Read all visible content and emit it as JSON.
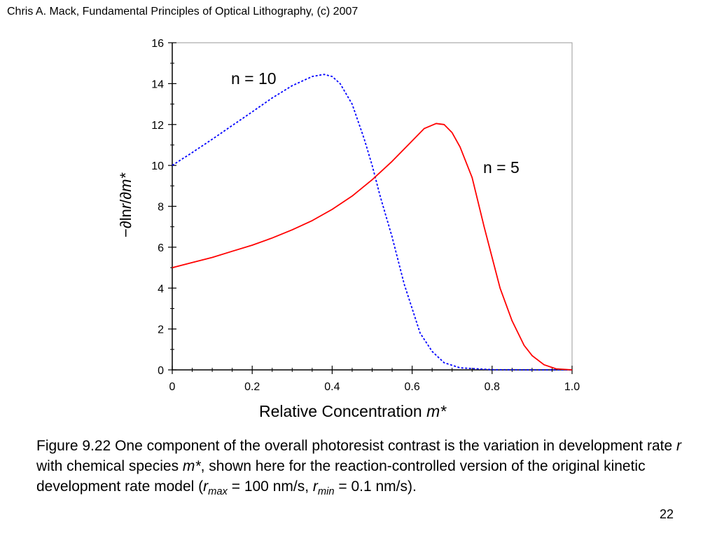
{
  "header": {
    "text": "Chris A. Mack, Fundamental Principles of Optical Lithography, (c) 2007"
  },
  "chart_data": {
    "type": "line",
    "xlim": [
      0,
      1.0
    ],
    "ylim": [
      0,
      16
    ],
    "x_ticks": [
      "0",
      "0.2",
      "0.4",
      "0.6",
      "0.8",
      "1.0"
    ],
    "y_ticks": [
      "0",
      "2",
      "4",
      "6",
      "8",
      "10",
      "12",
      "14",
      "16"
    ],
    "xlabel": {
      "text": "Relative Concentration ",
      "var": "m*"
    },
    "ylabel": {
      "prefix": "−∂ln",
      "r": "r",
      "mid": "/∂",
      "m": "m*"
    },
    "grid": false,
    "series": [
      {
        "name": "n = 10",
        "color": "#0000ff",
        "style": "dotted",
        "points": [
          [
            0,
            10.0
          ],
          [
            0.05,
            10.63
          ],
          [
            0.1,
            11.28
          ],
          [
            0.15,
            11.95
          ],
          [
            0.2,
            12.62
          ],
          [
            0.25,
            13.3
          ],
          [
            0.3,
            13.9
          ],
          [
            0.35,
            14.35
          ],
          [
            0.38,
            14.45
          ],
          [
            0.4,
            14.35
          ],
          [
            0.42,
            14.0
          ],
          [
            0.45,
            13.0
          ],
          [
            0.48,
            11.3
          ],
          [
            0.5,
            10.0
          ],
          [
            0.52,
            8.5
          ],
          [
            0.55,
            6.5
          ],
          [
            0.58,
            4.2
          ],
          [
            0.6,
            3.0
          ],
          [
            0.62,
            1.8
          ],
          [
            0.65,
            0.9
          ],
          [
            0.68,
            0.35
          ],
          [
            0.72,
            0.1
          ],
          [
            0.8,
            0.01
          ],
          [
            0.9,
            0.0
          ],
          [
            1.0,
            0.0
          ]
        ]
      },
      {
        "name": "n = 5",
        "color": "#ff0000",
        "style": "solid",
        "points": [
          [
            0,
            5.0
          ],
          [
            0.05,
            5.25
          ],
          [
            0.1,
            5.5
          ],
          [
            0.15,
            5.8
          ],
          [
            0.2,
            6.1
          ],
          [
            0.25,
            6.45
          ],
          [
            0.3,
            6.85
          ],
          [
            0.35,
            7.3
          ],
          [
            0.4,
            7.85
          ],
          [
            0.45,
            8.5
          ],
          [
            0.5,
            9.3
          ],
          [
            0.55,
            10.2
          ],
          [
            0.6,
            11.2
          ],
          [
            0.63,
            11.8
          ],
          [
            0.66,
            12.05
          ],
          [
            0.68,
            12.0
          ],
          [
            0.7,
            11.6
          ],
          [
            0.72,
            10.9
          ],
          [
            0.75,
            9.4
          ],
          [
            0.78,
            7.0
          ],
          [
            0.8,
            5.5
          ],
          [
            0.82,
            4.0
          ],
          [
            0.85,
            2.4
          ],
          [
            0.88,
            1.2
          ],
          [
            0.9,
            0.7
          ],
          [
            0.93,
            0.25
          ],
          [
            0.96,
            0.05
          ],
          [
            1.0,
            0.0
          ]
        ]
      }
    ]
  },
  "caption": {
    "part1": "Figure 9.22  One component of the overall photoresist contrast is the variation in development rate ",
    "r": "r",
    "part2": " with chemical species ",
    "m": "m*",
    "part3": ", shown here for the reaction-controlled version of the original kinetic development rate model (",
    "rmax_r": "r",
    "rmax_sub": "max",
    "part4": " = 100 nm/s, ",
    "rmin_r": "r",
    "rmin_sub": "min",
    "part5": " = 0.1 nm/s)."
  },
  "page_number": "22"
}
